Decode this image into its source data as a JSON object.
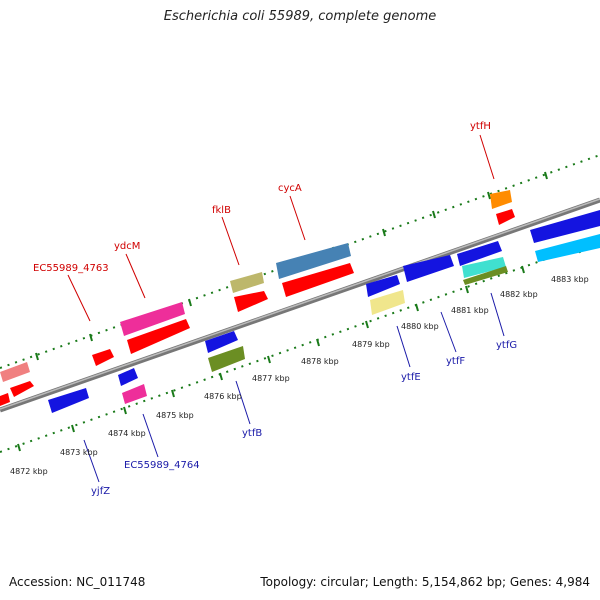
{
  "title": "Escherichia coli 55989, complete genome",
  "footer": {
    "accession": "Accession: NC_011748",
    "summary": "Topology: circular; Length: 5,154,862 bp; Genes: 4,984"
  },
  "colors": {
    "backbone": "#888888",
    "ticks": "#1a7a1a",
    "label_red": "#d00000",
    "label_blue": "#1a1aa8"
  },
  "scale_labels": [
    "4872 kbp",
    "4873 kbp",
    "4874 kbp",
    "4875 kbp",
    "4876 kbp",
    "4877 kbp",
    "4878 kbp",
    "4879 kbp",
    "4880 kbp",
    "4881 kbp",
    "4882 kbp",
    "4883 kbp"
  ],
  "gene_labels_top": [
    {
      "name": "EC55989_4763",
      "color": "red"
    },
    {
      "name": "ydcM",
      "color": "red"
    },
    {
      "name": "fklB",
      "color": "red"
    },
    {
      "name": "cycA",
      "color": "red"
    },
    {
      "name": "ytfH",
      "color": "red"
    }
  ],
  "gene_labels_bottom": [
    {
      "name": "yjfZ",
      "color": "blue"
    },
    {
      "name": "EC55989_4764",
      "color": "blue"
    },
    {
      "name": "ytfB",
      "color": "blue"
    },
    {
      "name": "ytfE",
      "color": "blue"
    },
    {
      "name": "ytfF",
      "color": "blue"
    },
    {
      "name": "ytfG",
      "color": "blue"
    }
  ]
}
